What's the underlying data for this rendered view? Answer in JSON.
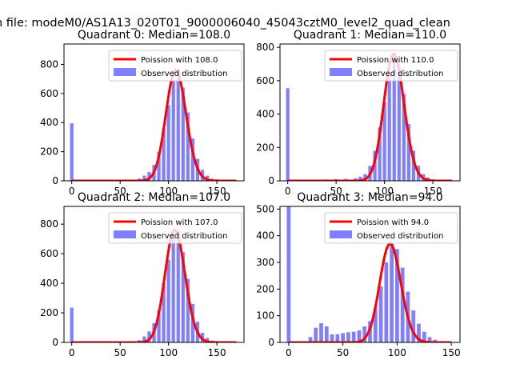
{
  "figure": {
    "suptitle": "n file: modeM0/AS1A13_020T01_9000006040_45043cztM0_level2_quad_clean"
  },
  "chart_data": [
    {
      "type": "bar",
      "title": "Quadrant 0: Median=108.0",
      "xlim": [
        -8,
        178
      ],
      "ylim": [
        0,
        940
      ],
      "xticks": [
        0,
        50,
        100,
        150
      ],
      "yticks": [
        0,
        200,
        400,
        600,
        800
      ],
      "legend": [
        "Poission with 108.0",
        "Observed distribution"
      ],
      "legend_position": "upper right",
      "bar_color": "#8080ff",
      "line_color": "#ff0000",
      "histogram": [
        [
          0,
          395
        ],
        [
          40,
          8
        ],
        [
          70,
          15
        ],
        [
          75,
          35
        ],
        [
          80,
          60
        ],
        [
          85,
          110
        ],
        [
          90,
          200
        ],
        [
          95,
          360
        ],
        [
          100,
          520
        ],
        [
          105,
          690
        ],
        [
          110,
          760
        ],
        [
          115,
          640
        ],
        [
          120,
          470
        ],
        [
          125,
          290
        ],
        [
          130,
          150
        ],
        [
          135,
          75
        ],
        [
          140,
          35
        ],
        [
          145,
          15
        ],
        [
          150,
          10
        ],
        [
          155,
          5
        ]
      ],
      "poisson_mean": 108.0
    },
    {
      "type": "bar",
      "title": "Quadrant 1: Median=110.0",
      "xlim": [
        -8,
        178
      ],
      "ylim": [
        0,
        820
      ],
      "xticks": [
        0,
        50,
        100,
        150
      ],
      "yticks": [
        0,
        200,
        400,
        600,
        800
      ],
      "legend": [
        "Poission with 110.0",
        "Observed distribution"
      ],
      "legend_position": "upper right",
      "bar_color": "#8080ff",
      "line_color": "#ff0000",
      "histogram": [
        [
          0,
          555
        ],
        [
          30,
          5
        ],
        [
          40,
          8
        ],
        [
          50,
          10
        ],
        [
          60,
          12
        ],
        [
          70,
          15
        ],
        [
          75,
          25
        ],
        [
          80,
          40
        ],
        [
          85,
          90
        ],
        [
          90,
          180
        ],
        [
          95,
          320
        ],
        [
          100,
          470
        ],
        [
          105,
          640
        ],
        [
          110,
          760
        ],
        [
          115,
          680
        ],
        [
          120,
          520
        ],
        [
          125,
          340
        ],
        [
          130,
          180
        ],
        [
          135,
          90
        ],
        [
          140,
          40
        ],
        [
          145,
          20
        ],
        [
          150,
          8
        ]
      ],
      "poisson_mean": 110.0
    },
    {
      "type": "bar",
      "title": "Quadrant 2: Median=107.0",
      "xlim": [
        -8,
        178
      ],
      "ylim": [
        0,
        920
      ],
      "xticks": [
        0,
        50,
        100,
        150
      ],
      "yticks": [
        0,
        200,
        400,
        600,
        800
      ],
      "legend": [
        "Poission with 107.0",
        "Observed distribution"
      ],
      "legend_position": "upper right",
      "bar_color": "#8080ff",
      "line_color": "#ff0000",
      "histogram": [
        [
          0,
          235
        ],
        [
          70,
          15
        ],
        [
          75,
          40
        ],
        [
          80,
          75
        ],
        [
          85,
          130
        ],
        [
          90,
          220
        ],
        [
          95,
          400
        ],
        [
          100,
          560
        ],
        [
          105,
          720
        ],
        [
          110,
          760
        ],
        [
          115,
          610
        ],
        [
          120,
          430
        ],
        [
          125,
          260
        ],
        [
          130,
          140
        ],
        [
          135,
          65
        ],
        [
          140,
          30
        ],
        [
          145,
          12
        ],
        [
          150,
          6
        ]
      ],
      "poisson_mean": 107.0
    },
    {
      "type": "bar",
      "title": "Quadrant 3: Median=94.0",
      "xlim": [
        -8,
        158
      ],
      "ylim": [
        0,
        510
      ],
      "xticks": [
        0,
        50,
        100,
        150
      ],
      "yticks": [
        0,
        100,
        200,
        300,
        400,
        500
      ],
      "legend": [
        "Poission with 94.0",
        "Observed distribution"
      ],
      "legend_position": "upper right",
      "bar_color": "#8080ff",
      "line_color": "#ff0000",
      "histogram": [
        [
          0,
          510
        ],
        [
          20,
          20
        ],
        [
          25,
          55
        ],
        [
          30,
          72
        ],
        [
          35,
          60
        ],
        [
          40,
          30
        ],
        [
          45,
          30
        ],
        [
          50,
          35
        ],
        [
          55,
          38
        ],
        [
          60,
          40
        ],
        [
          65,
          45
        ],
        [
          70,
          60
        ],
        [
          75,
          80
        ],
        [
          80,
          130
        ],
        [
          85,
          210
        ],
        [
          90,
          300
        ],
        [
          95,
          370
        ],
        [
          100,
          350
        ],
        [
          105,
          280
        ],
        [
          110,
          190
        ],
        [
          115,
          120
        ],
        [
          120,
          70
        ],
        [
          125,
          40
        ],
        [
          130,
          20
        ],
        [
          135,
          10
        ],
        [
          140,
          5
        ]
      ],
      "poisson_mean": 94.0
    }
  ]
}
